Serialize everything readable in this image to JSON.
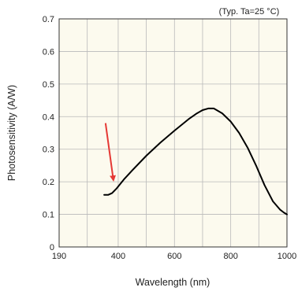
{
  "chart_data": {
    "type": "line",
    "note": "(Typ. Ta=25 °C)",
    "xlabel": "Wavelength (nm)",
    "ylabel": "Photosensitivity  (A/W)",
    "xlim": [
      190,
      1000
    ],
    "ylim": [
      0,
      0.7
    ],
    "x_ticks": [
      190,
      400,
      600,
      800,
      1000
    ],
    "x_tick_labels": [
      "190",
      "400",
      "600",
      "800",
      "1000"
    ],
    "y_ticks": [
      0,
      0.1,
      0.2,
      0.3,
      0.4,
      0.5,
      0.6,
      0.7
    ],
    "y_tick_labels": [
      "0",
      "0.1",
      "0.2",
      "0.3",
      "0.4",
      "0.5",
      "0.6",
      "0.7"
    ],
    "x_grid": [
      190,
      290,
      400,
      500,
      600,
      700,
      800,
      900,
      1000
    ],
    "grid": true,
    "background_color": "#fcfaee",
    "line_color": "#000000",
    "series": [
      {
        "x": [
          350,
          365,
          378,
          395,
          420,
          450,
          500,
          550,
          600,
          650,
          680,
          700,
          720,
          740,
          770,
          800,
          830,
          860,
          890,
          920,
          950,
          975,
          990,
          1000
        ],
        "values": [
          0.16,
          0.16,
          0.165,
          0.18,
          0.207,
          0.235,
          0.28,
          0.32,
          0.357,
          0.392,
          0.41,
          0.42,
          0.425,
          0.425,
          0.41,
          0.385,
          0.35,
          0.305,
          0.25,
          0.19,
          0.14,
          0.115,
          0.105,
          0.1
        ]
      }
    ],
    "annotation": {
      "type": "arrow",
      "color": "#e53935",
      "from": [
        355,
        0.38
      ],
      "to": [
        383,
        0.205
      ]
    }
  }
}
